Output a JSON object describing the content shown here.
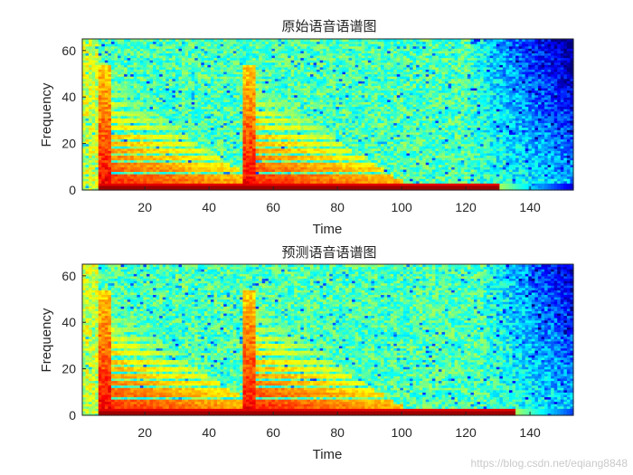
{
  "chart_data": [
    {
      "type": "heatmap",
      "title": "原始语音语谱图",
      "xlabel": "Time",
      "ylabel": "Frequency",
      "xlim": [
        1,
        153
      ],
      "ylim": [
        0,
        65
      ],
      "xticks": [
        20,
        40,
        60,
        80,
        100,
        120,
        140
      ],
      "yticks": [
        0,
        20,
        40,
        60
      ],
      "colormap": "jet",
      "onsets_time": [
        6,
        51
      ],
      "harmonic_freqs": [
        3,
        5,
        8,
        10,
        13,
        16,
        19,
        22,
        26,
        29,
        32,
        36,
        40,
        44,
        48
      ],
      "fade_time": 130,
      "seed": 17
    },
    {
      "type": "heatmap",
      "title": "预测语音语谱图",
      "xlabel": "Time",
      "ylabel": "Frequency",
      "xlim": [
        1,
        153
      ],
      "ylim": [
        0,
        65
      ],
      "xticks": [
        20,
        40,
        60,
        80,
        100,
        120,
        140
      ],
      "yticks": [
        0,
        20,
        40,
        60
      ],
      "colormap": "jet",
      "onsets_time": [
        6,
        51
      ],
      "harmonic_freqs": [
        3,
        5,
        8,
        10,
        13,
        16,
        19,
        22,
        26,
        29,
        32,
        36,
        40,
        44,
        48
      ],
      "fade_time": 135,
      "seed": 53
    }
  ],
  "watermark": "https://blog.csdn.net/eqiang8848"
}
